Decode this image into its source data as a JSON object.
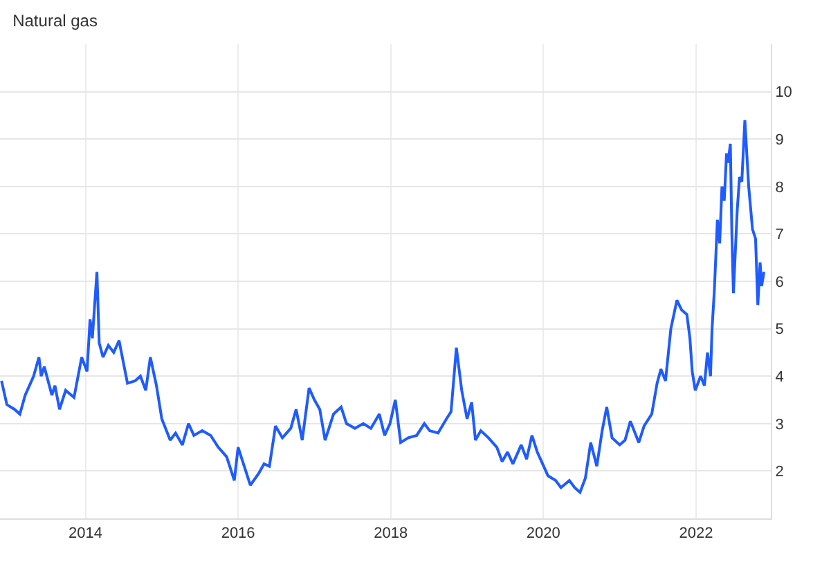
{
  "chart_data": {
    "type": "line",
    "title": "Natural gas",
    "x": [
      2012.9,
      2012.97,
      2013.07,
      2013.14,
      2013.21,
      2013.32,
      2013.39,
      2013.42,
      2013.46,
      2013.56,
      2013.6,
      2013.66,
      2013.74,
      2013.85,
      2013.95,
      2014.02,
      2014.06,
      2014.09,
      2014.15,
      2014.18,
      2014.23,
      2014.3,
      2014.37,
      2014.44,
      2014.55,
      2014.65,
      2014.72,
      2014.79,
      2014.85,
      2014.93,
      2015.0,
      2015.11,
      2015.18,
      2015.27,
      2015.35,
      2015.42,
      2015.53,
      2015.64,
      2015.74,
      2015.85,
      2015.95,
      2016.0,
      2016.06,
      2016.16,
      2016.27,
      2016.34,
      2016.41,
      2016.49,
      2016.58,
      2016.69,
      2016.76,
      2016.84,
      2016.93,
      2017.0,
      2017.07,
      2017.14,
      2017.25,
      2017.35,
      2017.42,
      2017.53,
      2017.64,
      2017.74,
      2017.85,
      2017.92,
      2017.99,
      2018.06,
      2018.13,
      2018.23,
      2018.34,
      2018.44,
      2018.51,
      2018.62,
      2018.73,
      2018.79,
      2018.86,
      2018.93,
      2019.0,
      2019.06,
      2019.11,
      2019.18,
      2019.28,
      2019.39,
      2019.46,
      2019.53,
      2019.6,
      2019.71,
      2019.78,
      2019.85,
      2019.92,
      2019.99,
      2020.06,
      2020.16,
      2020.23,
      2020.34,
      2020.41,
      2020.48,
      2020.55,
      2020.62,
      2020.7,
      2020.77,
      2020.83,
      2020.9,
      2021.0,
      2021.07,
      2021.14,
      2021.25,
      2021.32,
      2021.42,
      2021.49,
      2021.54,
      2021.6,
      2021.67,
      2021.75,
      2021.81,
      2021.88,
      2021.92,
      2021.95,
      2021.99,
      2022.06,
      2022.11,
      2022.15,
      2022.19,
      2022.21,
      2022.24,
      2022.28,
      2022.31,
      2022.34,
      2022.37,
      2022.4,
      2022.42,
      2022.45,
      2022.47,
      2022.49,
      2022.54,
      2022.57,
      2022.6,
      2022.64,
      2022.69,
      2022.74,
      2022.78,
      2022.81,
      2022.84,
      2022.86,
      2022.89
    ],
    "series": [
      {
        "color": "#1f5bff",
        "values": [
          3.9,
          3.4,
          3.3,
          3.2,
          3.6,
          4.0,
          4.4,
          4.0,
          4.2,
          3.6,
          3.8,
          3.3,
          3.7,
          3.55,
          4.4,
          4.1,
          5.2,
          4.8,
          6.2,
          4.7,
          4.4,
          4.65,
          4.5,
          4.75,
          3.85,
          3.9,
          4.0,
          3.7,
          4.4,
          3.8,
          3.1,
          2.65,
          2.8,
          2.55,
          3.0,
          2.75,
          2.85,
          2.75,
          2.5,
          2.3,
          1.8,
          2.5,
          2.2,
          1.7,
          1.95,
          2.15,
          2.1,
          2.95,
          2.7,
          2.9,
          3.3,
          2.65,
          3.75,
          3.5,
          3.3,
          2.65,
          3.2,
          3.35,
          3.0,
          2.9,
          3.0,
          2.9,
          3.2,
          2.75,
          3.0,
          3.5,
          2.6,
          2.7,
          2.75,
          3.0,
          2.85,
          2.8,
          3.1,
          3.25,
          4.6,
          3.7,
          3.1,
          3.45,
          2.65,
          2.85,
          2.7,
          2.5,
          2.2,
          2.4,
          2.15,
          2.55,
          2.25,
          2.75,
          2.4,
          2.15,
          1.9,
          1.8,
          1.65,
          1.8,
          1.65,
          1.55,
          1.85,
          2.6,
          2.1,
          2.85,
          3.35,
          2.7,
          2.55,
          2.65,
          3.05,
          2.6,
          2.95,
          3.2,
          3.85,
          4.15,
          3.9,
          5.0,
          5.6,
          5.4,
          5.3,
          4.8,
          4.1,
          3.7,
          4.0,
          3.8,
          4.5,
          4.0,
          5.0,
          5.8,
          7.3,
          6.8,
          8.0,
          7.7,
          8.7,
          8.5,
          8.9,
          7.0,
          5.75,
          7.5,
          8.2,
          8.1,
          9.4,
          8.0,
          7.1,
          6.9,
          5.5,
          6.4,
          5.9,
          6.2
        ]
      }
    ],
    "xlim": [
      2012.88,
      2022.98
    ],
    "xticks": [
      2014,
      2016,
      2018,
      2020,
      2022
    ],
    "ylim": [
      1,
      11
    ],
    "yticks": [
      2,
      3,
      4,
      5,
      6,
      7,
      8,
      9,
      10
    ],
    "grid": true,
    "legend": false,
    "marker": "none",
    "line_style": "solid"
  }
}
